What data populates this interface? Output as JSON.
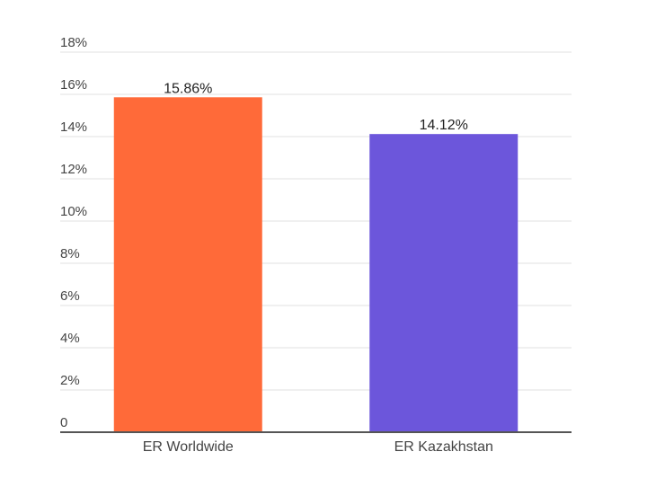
{
  "chart_data": {
    "type": "bar",
    "categories": [
      "ER Worldwide",
      "ER Kazakhstan"
    ],
    "values": [
      15.86,
      14.12
    ],
    "data_labels": [
      "15.86%",
      "14.12%"
    ],
    "colors": [
      "#ff6a39",
      "#6c56db"
    ],
    "title": "",
    "xlabel": "",
    "ylabel": "",
    "ylim": [
      0,
      18
    ],
    "y_ticks": [
      0,
      2,
      4,
      6,
      8,
      10,
      12,
      14,
      16,
      18
    ],
    "y_tick_labels": [
      "0",
      "2%",
      "4%",
      "6%",
      "8%",
      "10%",
      "12%",
      "14%",
      "16%",
      "18%"
    ],
    "grid": true,
    "legend": "none"
  }
}
